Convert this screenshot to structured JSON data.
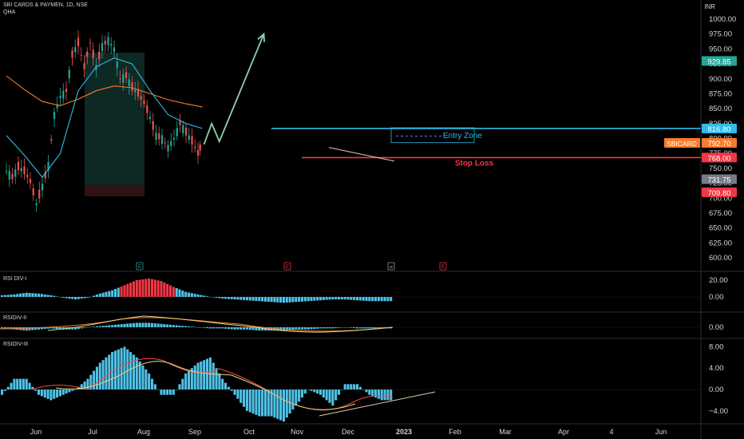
{
  "header": {
    "symbol": "SBI CARDS & PAYMEN, 1D, NSE",
    "indicator": "QHA"
  },
  "currency": "INR",
  "panes": {
    "rsi1": "RSI DIV-I",
    "rsi2": "RSIDIV-II",
    "rsi3": "RSIDIV-III"
  },
  "x_axis": [
    "Jun",
    "Jul",
    "Aug",
    "Sep",
    "Oct",
    "Nov",
    "Dec",
    "2023",
    "Feb",
    "Mar",
    "Apr",
    "4",
    "Jun"
  ],
  "price_axis_ticks": [
    "1000.00",
    "975.00",
    "950.00",
    "925.00",
    "900.00",
    "875.00",
    "850.00",
    "825.00",
    "800.00",
    "775.00",
    "750.00",
    "725.00",
    "700.00",
    "675.00",
    "650.00",
    "625.00",
    "600.00"
  ],
  "rsi1_ticks": [
    "20.00",
    "0.00"
  ],
  "rsi2_ticks": [
    "0.00"
  ],
  "rsi3_ticks": [
    "8.00",
    "4.00",
    "0.00",
    "−4.00"
  ],
  "price_labels": [
    {
      "text": "929.85",
      "value": 929.85,
      "color": "#26a69a"
    },
    {
      "text": "816.80",
      "value": 816.8,
      "color": "#2ebce8"
    },
    {
      "text": "792.70",
      "value": 792.7,
      "color": "#f57c2b"
    },
    {
      "text": "768.00",
      "value": 768.0,
      "color": "#f23645"
    },
    {
      "text": "731.75",
      "value": 731.75,
      "color": "#787b86"
    },
    {
      "text": "709.80",
      "value": 709.8,
      "color": "#f23645"
    }
  ],
  "ticker_badge": "SBICARD",
  "annotations": {
    "entry_zone": "Entry Zone",
    "stop_loss": "Stop Loss"
  },
  "event_markers": [
    {
      "text": "E",
      "color": "#26a69a"
    },
    {
      "text": "E",
      "color": "#f23645"
    },
    {
      "text": "⌀",
      "color": "#9598a1"
    },
    {
      "text": "E",
      "color": "#f23645"
    }
  ],
  "colors": {
    "up": "#26a69a",
    "down": "#ef5350",
    "ema_fast": "#2ebce8",
    "ema_slow": "#f57c2b",
    "hist": "#4fc3e8",
    "hist_neg_red": "#f23645",
    "projection": "#8fd3b0"
  },
  "chart_data": {
    "type": "candlestick",
    "xlabel": "",
    "ylabel": "",
    "ylim": [
      600,
      1020
    ],
    "close_path": [
      {
        "date": "2022-05-13",
        "close": 745
      },
      {
        "date": "2022-05-20",
        "close": 735
      },
      {
        "date": "2022-05-27",
        "close": 752
      },
      {
        "date": "2022-06-03",
        "close": 745
      },
      {
        "date": "2022-06-10",
        "close": 728
      },
      {
        "date": "2022-06-17",
        "close": 690
      },
      {
        "date": "2022-06-24",
        "close": 720
      },
      {
        "date": "2022-07-01",
        "close": 755
      },
      {
        "date": "2022-07-08",
        "close": 840
      },
      {
        "date": "2022-07-15",
        "close": 870
      },
      {
        "date": "2022-07-22",
        "close": 880
      },
      {
        "date": "2022-07-29",
        "close": 940
      },
      {
        "date": "2022-08-05",
        "close": 960
      },
      {
        "date": "2022-08-12",
        "close": 920
      },
      {
        "date": "2022-08-19",
        "close": 960
      },
      {
        "date": "2022-08-26",
        "close": 920
      },
      {
        "date": "2022-09-02",
        "close": 955
      },
      {
        "date": "2022-09-09",
        "close": 965
      },
      {
        "date": "2022-09-16",
        "close": 950
      },
      {
        "date": "2022-09-23",
        "close": 900
      },
      {
        "date": "2022-09-30",
        "close": 905
      },
      {
        "date": "2022-10-07",
        "close": 885
      },
      {
        "date": "2022-10-14",
        "close": 875
      },
      {
        "date": "2022-10-21",
        "close": 860
      },
      {
        "date": "2022-10-28",
        "close": 835
      },
      {
        "date": "2022-11-04",
        "close": 805
      },
      {
        "date": "2022-11-11",
        "close": 800
      },
      {
        "date": "2022-11-18",
        "close": 785
      },
      {
        "date": "2022-11-25",
        "close": 800
      },
      {
        "date": "2022-12-02",
        "close": 825
      },
      {
        "date": "2022-12-09",
        "close": 810
      },
      {
        "date": "2022-12-16",
        "close": 795
      },
      {
        "date": "2022-12-23",
        "close": 775
      },
      {
        "date": "2022-12-28",
        "close": 792.7
      }
    ],
    "ema_fast": [
      {
        "date": "2022-05-13",
        "value": 805
      },
      {
        "date": "2022-06-03",
        "value": 772
      },
      {
        "date": "2022-06-24",
        "value": 735
      },
      {
        "date": "2022-07-15",
        "value": 775
      },
      {
        "date": "2022-08-05",
        "value": 880
      },
      {
        "date": "2022-08-26",
        "value": 920
      },
      {
        "date": "2022-09-16",
        "value": 935
      },
      {
        "date": "2022-10-07",
        "value": 925
      },
      {
        "date": "2022-10-28",
        "value": 880
      },
      {
        "date": "2022-11-18",
        "value": 840
      },
      {
        "date": "2022-12-09",
        "value": 825
      },
      {
        "date": "2022-12-28",
        "value": 816.8
      }
    ],
    "ema_slow": [
      {
        "date": "2022-05-13",
        "value": 905
      },
      {
        "date": "2022-06-03",
        "value": 882
      },
      {
        "date": "2022-06-24",
        "value": 862
      },
      {
        "date": "2022-07-15",
        "value": 855
      },
      {
        "date": "2022-08-05",
        "value": 866
      },
      {
        "date": "2022-08-26",
        "value": 880
      },
      {
        "date": "2022-09-16",
        "value": 888
      },
      {
        "date": "2022-10-07",
        "value": 885
      },
      {
        "date": "2022-10-28",
        "value": 875
      },
      {
        "date": "2022-11-18",
        "value": 865
      },
      {
        "date": "2022-12-09",
        "value": 858
      },
      {
        "date": "2022-12-28",
        "value": 853
      }
    ],
    "levels": [
      {
        "name": "resistance",
        "value": 816.8
      },
      {
        "name": "stop_loss",
        "value": 768.0
      }
    ],
    "projection": [
      {
        "date": "2022-12-30",
        "value": 790
      },
      {
        "date": "2023-01-08",
        "value": 825
      },
      {
        "date": "2023-01-17",
        "value": 795
      },
      {
        "date": "2023-03-10",
        "value": 975
      }
    ],
    "rsi_div_1": [
      2,
      3,
      5,
      4,
      2,
      -1,
      -3,
      -1,
      4,
      8,
      14,
      20,
      22,
      19,
      12,
      6,
      3,
      0,
      -2,
      -3,
      -4,
      -5,
      -6,
      -7,
      -6,
      -5,
      -4,
      -3,
      -3,
      -4,
      -5,
      -5
    ],
    "rsi_div_2": [
      -1,
      -2,
      -3,
      -2,
      -1,
      -2,
      -2,
      0,
      1,
      2,
      3,
      4,
      4,
      3,
      2,
      1,
      0,
      -1,
      -1,
      -2,
      -2,
      -3,
      -3,
      -3,
      -2,
      -2,
      -1,
      -1,
      0,
      -1,
      -1,
      -1
    ],
    "rsi_div_3": [
      -1,
      2,
      2,
      -1,
      -2,
      -1,
      0,
      2,
      5,
      7,
      8,
      6,
      3,
      -1,
      -1,
      3,
      5,
      6,
      2,
      -1,
      -4,
      -5,
      -5,
      -6,
      -3,
      0,
      -1,
      -3,
      1,
      1,
      -1,
      -2
    ]
  }
}
